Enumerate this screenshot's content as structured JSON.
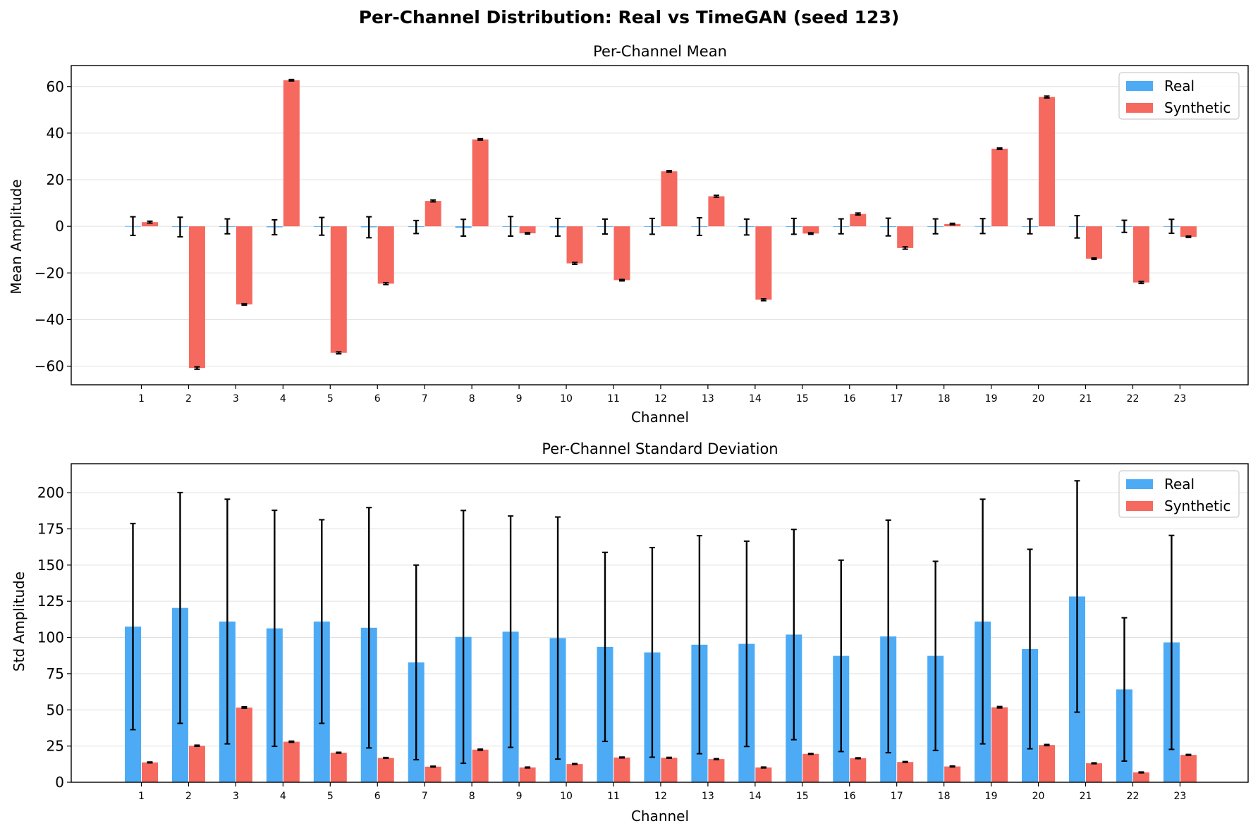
{
  "title": "Per-Channel Distribution: Real vs TimeGAN (seed 123)",
  "colors": {
    "real": "#4DABF5",
    "synthetic": "#F6695F",
    "error": "#000000",
    "grid": "#e0e0e0"
  },
  "chart_data": [
    {
      "type": "bar",
      "title": "Per-Channel Mean",
      "xlabel": "Channel",
      "ylabel": "Mean Amplitude",
      "ylim": [
        -68,
        69
      ],
      "yticks": [
        -60,
        -40,
        -20,
        0,
        20,
        40,
        60
      ],
      "ytick_labels": [
        "−60",
        "−40",
        "−20",
        "0",
        "20",
        "40",
        "60"
      ],
      "grid": "horizontal",
      "legend_position": "top-right",
      "categories": [
        "1",
        "2",
        "3",
        "4",
        "5",
        "6",
        "7",
        "8",
        "9",
        "10",
        "11",
        "12",
        "13",
        "14",
        "15",
        "16",
        "17",
        "18",
        "19",
        "20",
        "21",
        "22",
        "23"
      ],
      "series": [
        {
          "name": "Real",
          "values": [
            0.1,
            -0.3,
            0.0,
            -0.4,
            0.0,
            -0.4,
            -0.3,
            -0.6,
            0.0,
            -0.4,
            -0.1,
            0.0,
            -0.1,
            -0.3,
            0.0,
            0.0,
            -0.3,
            0.0,
            0.1,
            0.0,
            -0.2,
            0.0,
            0.0
          ],
          "errors": [
            4.0,
            4.2,
            3.2,
            3.2,
            3.8,
            4.5,
            2.8,
            3.6,
            4.2,
            3.8,
            3.2,
            3.4,
            3.8,
            3.4,
            3.4,
            3.2,
            3.8,
            3.2,
            3.2,
            3.2,
            4.8,
            2.6,
            3.0
          ]
        },
        {
          "name": "Synthetic",
          "values": [
            1.8,
            -60.8,
            -33.5,
            62.7,
            -54.3,
            -24.6,
            10.9,
            37.3,
            -3.0,
            -15.9,
            -23.1,
            23.6,
            12.9,
            -31.5,
            -3.1,
            5.3,
            -9.3,
            1.0,
            33.3,
            55.5,
            -13.9,
            -24.1,
            -4.5
          ],
          "errors": [
            0.4,
            0.5,
            0.3,
            0.3,
            0.4,
            0.4,
            0.4,
            0.3,
            0.3,
            0.4,
            0.3,
            0.3,
            0.4,
            0.4,
            0.3,
            0.4,
            0.5,
            0.3,
            0.3,
            0.4,
            0.3,
            0.4,
            0.3
          ]
        }
      ]
    },
    {
      "type": "bar",
      "title": "Per-Channel Standard Deviation",
      "xlabel": "Channel",
      "ylabel": "Std Amplitude",
      "ylim": [
        0,
        220
      ],
      "yticks": [
        0,
        25,
        50,
        75,
        100,
        125,
        150,
        175,
        200
      ],
      "ytick_labels": [
        "0",
        "25",
        "50",
        "75",
        "100",
        "125",
        "150",
        "175",
        "200"
      ],
      "grid": "horizontal",
      "legend_position": "top-right",
      "categories": [
        "1",
        "2",
        "3",
        "4",
        "5",
        "6",
        "7",
        "8",
        "9",
        "10",
        "11",
        "12",
        "13",
        "14",
        "15",
        "16",
        "17",
        "18",
        "19",
        "20",
        "21",
        "22",
        "23"
      ],
      "series": [
        {
          "name": "Real",
          "values": [
            107.5,
            120.4,
            111.0,
            106.3,
            111.0,
            106.7,
            82.8,
            100.4,
            104.0,
            99.6,
            93.5,
            89.7,
            95.0,
            95.6,
            102.0,
            87.3,
            100.7,
            87.3,
            111.0,
            92.0,
            128.3,
            64.1,
            96.6
          ],
          "errors": [
            71.2,
            79.7,
            84.5,
            81.5,
            70.3,
            83.0,
            67.2,
            87.3,
            79.9,
            83.6,
            65.3,
            72.4,
            75.3,
            70.9,
            72.6,
            66.1,
            80.3,
            65.3,
            84.5,
            68.9,
            79.9,
            49.5,
            73.9
          ]
        },
        {
          "name": "Synthetic",
          "values": [
            13.7,
            25.2,
            51.6,
            28.0,
            20.4,
            16.8,
            10.8,
            22.5,
            10.2,
            12.6,
            17.1,
            16.9,
            16.0,
            10.2,
            19.6,
            16.6,
            14.0,
            10.9,
            51.8,
            25.7,
            13.1,
            6.8,
            18.9
          ],
          "errors": [
            0.3,
            0.4,
            0.5,
            0.4,
            0.3,
            0.3,
            0.3,
            0.4,
            0.3,
            0.3,
            0.3,
            0.3,
            0.3,
            0.3,
            0.3,
            0.3,
            0.3,
            0.3,
            0.5,
            0.4,
            0.3,
            0.3,
            0.3
          ]
        }
      ]
    }
  ]
}
